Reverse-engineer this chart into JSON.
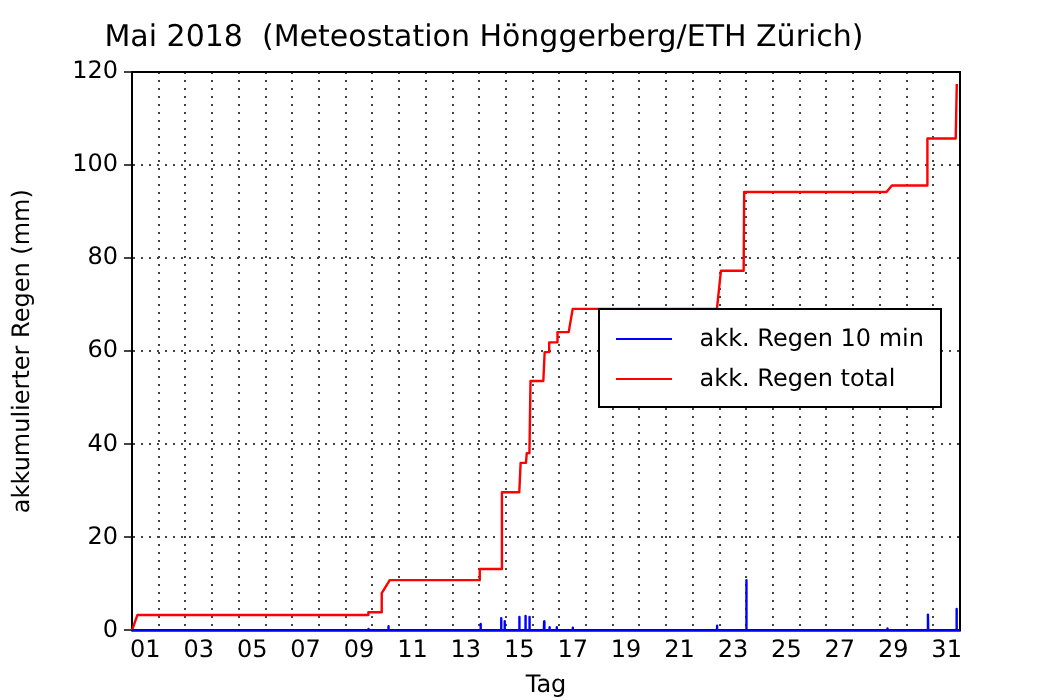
{
  "chart_data": {
    "type": "line",
    "title": "Mai 2018  (Meteostation Hönggerberg/ETH Zürich)",
    "xlabel": "Tag",
    "ylabel": "akkumulierter Regen (mm)",
    "xlim": [
      1,
      32
    ],
    "ylim": [
      0,
      120
    ],
    "yticks": [
      0,
      20,
      40,
      60,
      80,
      100,
      120
    ],
    "xticks": [
      {
        "value": 1.5,
        "label": "01"
      },
      {
        "value": 2,
        "label": null
      },
      {
        "value": 3,
        "label": null
      },
      {
        "value": 3.5,
        "label": "03"
      },
      {
        "value": 4,
        "label": null
      },
      {
        "value": 5,
        "label": null
      },
      {
        "value": 5.5,
        "label": "05"
      },
      {
        "value": 6,
        "label": null
      },
      {
        "value": 7,
        "label": null
      },
      {
        "value": 7.5,
        "label": "07"
      },
      {
        "value": 8,
        "label": null
      },
      {
        "value": 9,
        "label": null
      },
      {
        "value": 9.5,
        "label": "09"
      },
      {
        "value": 10,
        "label": null
      },
      {
        "value": 11,
        "label": null
      },
      {
        "value": 11.5,
        "label": "11"
      },
      {
        "value": 12,
        "label": null
      },
      {
        "value": 13,
        "label": null
      },
      {
        "value": 13.5,
        "label": "13"
      },
      {
        "value": 14,
        "label": null
      },
      {
        "value": 15,
        "label": null
      },
      {
        "value": 15.5,
        "label": "15"
      },
      {
        "value": 16,
        "label": null
      },
      {
        "value": 17,
        "label": null
      },
      {
        "value": 17.5,
        "label": "17"
      },
      {
        "value": 18,
        "label": null
      },
      {
        "value": 19,
        "label": null
      },
      {
        "value": 19.5,
        "label": "19"
      },
      {
        "value": 20,
        "label": null
      },
      {
        "value": 21,
        "label": null
      },
      {
        "value": 21.5,
        "label": "21"
      },
      {
        "value": 22,
        "label": null
      },
      {
        "value": 23,
        "label": null
      },
      {
        "value": 23.5,
        "label": "23"
      },
      {
        "value": 24,
        "label": null
      },
      {
        "value": 25,
        "label": null
      },
      {
        "value": 25.5,
        "label": "25"
      },
      {
        "value": 26,
        "label": null
      },
      {
        "value": 27,
        "label": null
      },
      {
        "value": 27.5,
        "label": "27"
      },
      {
        "value": 28,
        "label": null
      },
      {
        "value": 29,
        "label": null
      },
      {
        "value": 29.5,
        "label": "29"
      },
      {
        "value": 30,
        "label": null
      },
      {
        "value": 31,
        "label": null
      },
      {
        "value": 31.5,
        "label": "31"
      }
    ],
    "grid": true,
    "line_style": "solid",
    "legend": "right",
    "marker": "none",
    "series": [
      {
        "name": "akk. Regen 10 min",
        "color": "#0000ff",
        "x": [
          1,
          9.84,
          9.85,
          9.86,
          10.59,
          10.6,
          10.61,
          14.04,
          14.05,
          14.06,
          14.81,
          14.82,
          14.83,
          14.94,
          14.95,
          14.96,
          15.49,
          15.5,
          15.51,
          15.72,
          15.73,
          15.74,
          15.87,
          15.88,
          15.89,
          16.42,
          16.43,
          16.44,
          16.62,
          16.63,
          16.64,
          16.89,
          16.9,
          16.91,
          17.49,
          17.5,
          17.51,
          22.89,
          22.9,
          22.91,
          23.99,
          24,
          24.01,
          29.27,
          29.28,
          29.29,
          30.79,
          30.8,
          30.81,
          31.86,
          31.87,
          31.88,
          32
        ],
        "values": [
          0,
          0,
          0.3,
          0,
          0,
          0.9,
          0,
          0,
          1.4,
          0,
          0,
          2.6,
          0,
          0,
          2,
          0,
          0,
          2.9,
          0,
          0,
          3.1,
          0,
          0,
          2.9,
          0,
          0,
          1.9,
          0,
          0,
          0.7,
          0,
          0,
          0.7,
          0,
          0,
          0.6,
          0,
          0,
          1,
          0,
          0,
          10.8,
          0,
          0,
          0.4,
          0,
          0,
          3.4,
          0,
          0,
          4.6,
          0,
          0
        ]
      },
      {
        "name": "akk. Regen total",
        "color": "#ff0000",
        "x": [
          1,
          1.2,
          9.84,
          9.85,
          10.3,
          10.35,
          10.65,
          14,
          14.02,
          14.8,
          14.85,
          15.5,
          15.55,
          15.75,
          15.78,
          15.88,
          15.92,
          16.4,
          16.45,
          16.6,
          16.62,
          16.9,
          16.93,
          17.35,
          17.5,
          22.9,
          23.05,
          23.9,
          23.92,
          29.25,
          29.45,
          30.75,
          30.78,
          31.84,
          31.88
        ],
        "values": [
          0,
          3.3,
          3.3,
          3.9,
          3.9,
          8,
          10.8,
          10.8,
          13.2,
          13.2,
          29.7,
          29.7,
          36,
          36,
          38.1,
          38.1,
          53.6,
          53.6,
          59.8,
          59.8,
          61.9,
          61.9,
          64.1,
          64.1,
          69.1,
          69.1,
          77.3,
          77.3,
          94.2,
          94.2,
          95.6,
          95.6,
          105.7,
          105.7,
          117.4
        ]
      }
    ]
  }
}
